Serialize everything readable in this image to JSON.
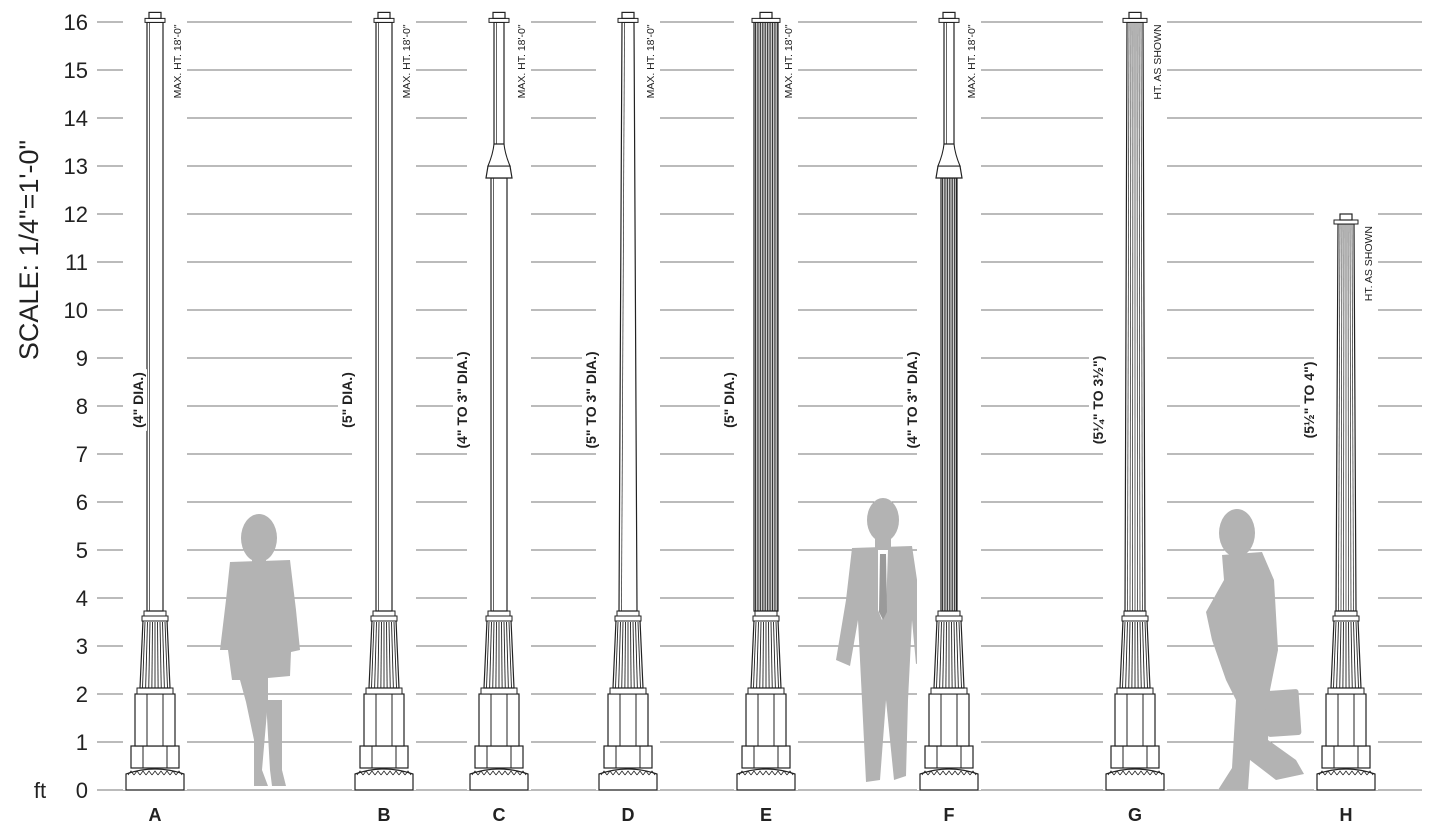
{
  "scale_label": "SCALE:  1/4\"=1'-0\"",
  "axis": {
    "unit_label": "ft",
    "ticks": [
      "0",
      "1",
      "2",
      "3",
      "4",
      "5",
      "6",
      "7",
      "8",
      "9",
      "10",
      "11",
      "12",
      "13",
      "14",
      "15",
      "16"
    ]
  },
  "posts": [
    {
      "letter": "A",
      "diameter_label": "(4\" DIA.)",
      "height_label": "MAX. HT.  18'-0\"",
      "top_ft": 16.2,
      "style": "plain",
      "collar": false
    },
    {
      "letter": "B",
      "diameter_label": "(5\" DIA.)",
      "height_label": "MAX. HT.  18'-0\"",
      "top_ft": 16.2,
      "style": "plain",
      "collar": false
    },
    {
      "letter": "C",
      "diameter_label": "(4\" TO 3\" DIA.)",
      "height_label": "MAX. HT.  18'-0\"",
      "top_ft": 16.2,
      "style": "collar",
      "collar": true
    },
    {
      "letter": "D",
      "diameter_label": "(5\" TO 3\" DIA.)",
      "height_label": "MAX. HT.  18'-0\"",
      "top_ft": 16.2,
      "style": "tapered",
      "collar": false
    },
    {
      "letter": "E",
      "diameter_label": "(5\" DIA.)",
      "height_label": "MAX. HT.  18'-0\"",
      "top_ft": 16.2,
      "style": "fluted-dark",
      "collar": false
    },
    {
      "letter": "F",
      "diameter_label": "(4\" TO 3\" DIA.)",
      "height_label": "MAX. HT.  18'-0\"",
      "top_ft": 16.2,
      "style": "collar-fluted",
      "collar": true
    },
    {
      "letter": "G",
      "diameter_label": "(5¼\" TO 3½\")",
      "height_label": "HT.  AS SHOWN",
      "top_ft": 16.2,
      "style": "fluted-light",
      "collar": false
    },
    {
      "letter": "H",
      "diameter_label": "(5½\" TO 4\")",
      "height_label": "HT.  AS SHOWN",
      "top_ft": 12.0,
      "style": "fluted-light",
      "collar": false
    }
  ],
  "colors": {
    "line": "#222222",
    "silhouette": "#b3b3b3",
    "grid": "#777777"
  }
}
